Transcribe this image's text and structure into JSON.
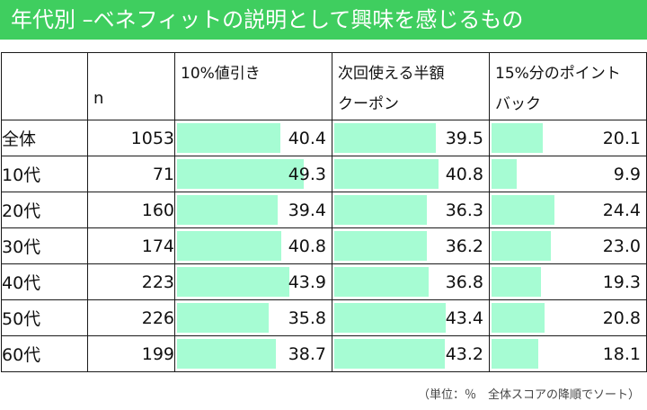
{
  "title": "年代別 –ベネフィットの説明として興味を感じるもの",
  "columns": {
    "n": "n",
    "c1": "10%値引き",
    "c2_line1": "次回使える半額",
    "c2_line2": "クーポン",
    "c3_line1": "15%分のポイント",
    "c3_line2": "バック"
  },
  "rows": [
    {
      "label": "全体",
      "n": "1053",
      "v1": "40.4",
      "v2": "39.5",
      "v3": "20.1"
    },
    {
      "label": "10代",
      "n": "71",
      "v1": "49.3",
      "v2": "40.8",
      "v3": "9.9"
    },
    {
      "label": "20代",
      "n": "160",
      "v1": "39.4",
      "v2": "36.3",
      "v3": "24.4"
    },
    {
      "label": "30代",
      "n": "174",
      "v1": "40.8",
      "v2": "36.2",
      "v3": "23.0"
    },
    {
      "label": "40代",
      "n": "223",
      "v1": "43.9",
      "v2": "36.8",
      "v3": "19.3"
    },
    {
      "label": "50代",
      "n": "226",
      "v1": "35.8",
      "v2": "43.4",
      "v3": "20.8"
    },
    {
      "label": "60代",
      "n": "199",
      "v1": "38.7",
      "v2": "43.2",
      "v3": "18.1"
    }
  ],
  "bar_color": "#a6fcd3",
  "header_color": "#3fce5f",
  "footnote": "（単位：％　全体スコアの降順でソート）"
}
